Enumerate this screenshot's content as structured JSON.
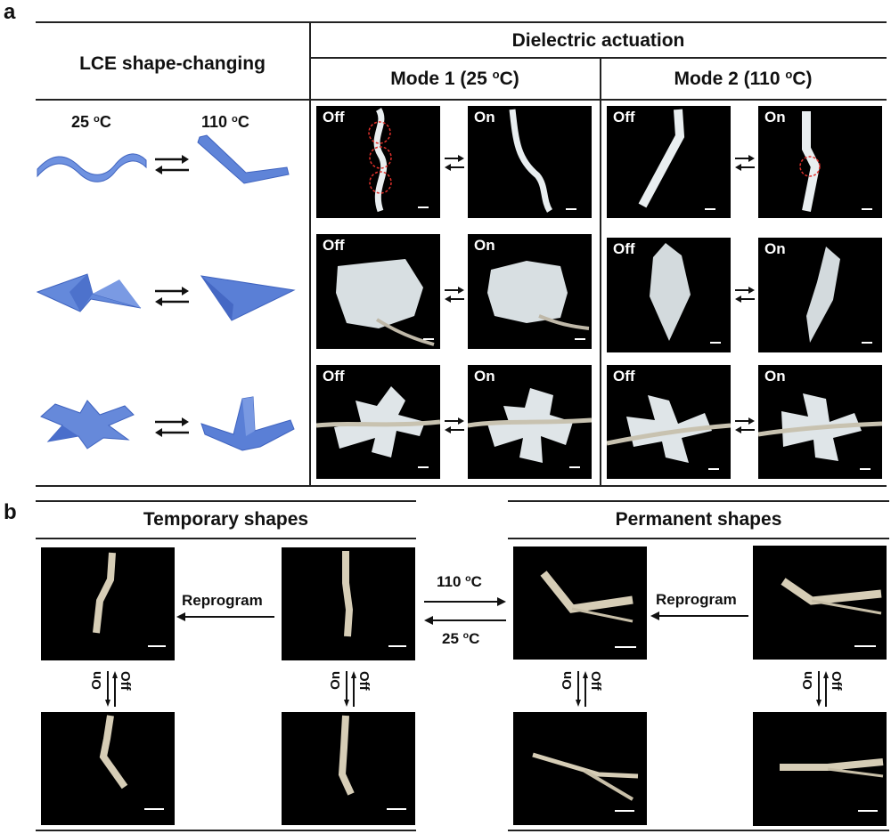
{
  "panel_a": {
    "label": "a",
    "lce_header": "LCE shape-changing",
    "dielectric_header": "Dielectric actuation",
    "mode1_header": "Mode 1 (25 ",
    "mode2_header": "Mode 2 (110 ",
    "degree_mark": "o",
    "celsius_close": "C)",
    "temp_left": "25 ",
    "temp_right": "110 ",
    "celsius": "C",
    "off_label": "Off",
    "on_label": "On"
  },
  "panel_b": {
    "label": "b",
    "temporary_header": "Temporary shapes",
    "permanent_header": "Permanent shapes",
    "reprogram_label": "Reprogram",
    "temp_forward": "110 ",
    "temp_back": "25 ",
    "celsius": "C",
    "degree_mark": "o",
    "on_label": "On",
    "off_label": "Off"
  },
  "colors": {
    "lce_blue": "#5a7fd6",
    "lce_blue_dark": "#3f63bf",
    "photo_bg": "#000000",
    "sample_white": "#e9eef0",
    "highlight_red": "#e0302b"
  }
}
